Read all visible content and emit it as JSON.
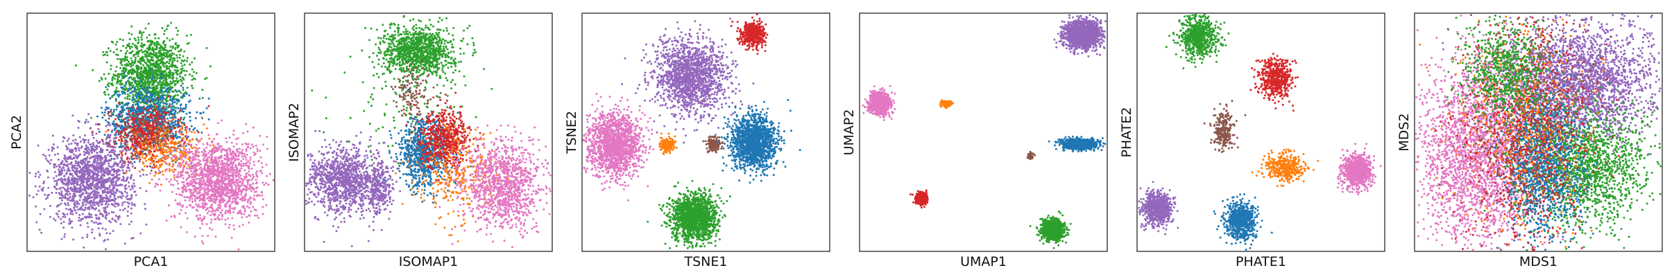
{
  "chart_data": [
    {
      "type": "scatter",
      "xlabel": "PCA1",
      "ylabel": "PCA2",
      "xticks": [],
      "yticks": [],
      "grid": false,
      "legend": "none",
      "clusters": [
        {
          "color": "#2ca02c",
          "center": [
            5.0,
            7.4
          ],
          "spread": [
            0.75,
            0.85
          ],
          "count": 1300
        },
        {
          "color": "#1f77b4",
          "center": [
            4.9,
            5.6
          ],
          "spread": [
            0.85,
            0.7
          ],
          "count": 900
        },
        {
          "color": "#d62728",
          "center": [
            4.8,
            4.9
          ],
          "spread": [
            0.7,
            0.55
          ],
          "count": 500
        },
        {
          "color": "#ff7f0e",
          "center": [
            5.6,
            4.2
          ],
          "spread": [
            0.8,
            0.5
          ],
          "count": 300
        },
        {
          "color": "#8c564b",
          "center": [
            4.9,
            5.1
          ],
          "spread": [
            0.6,
            0.5
          ],
          "count": 120
        },
        {
          "color": "#9467bd",
          "center": [
            2.6,
            3.0
          ],
          "spread": [
            0.85,
            0.9
          ],
          "count": 1500
        },
        {
          "color": "#e377c2",
          "center": [
            7.7,
            3.0
          ],
          "spread": [
            0.85,
            0.85
          ],
          "count": 1500
        }
      ]
    },
    {
      "type": "scatter",
      "xlabel": "ISOMAP1",
      "ylabel": "ISOMAP2",
      "xticks": [],
      "yticks": [],
      "grid": false,
      "legend": "none",
      "clusters": [
        {
          "color": "#2ca02c",
          "center": [
            4.6,
            8.4
          ],
          "spread": [
            0.7,
            0.5
          ],
          "count": 1100
        },
        {
          "color": "#2ca02c",
          "center": [
            4.3,
            6.2
          ],
          "spread": [
            1.5,
            1.5
          ],
          "count": 150
        },
        {
          "color": "#8c564b",
          "center": [
            4.4,
            6.6
          ],
          "spread": [
            0.4,
            0.6
          ],
          "count": 120
        },
        {
          "color": "#1f77b4",
          "center": [
            4.8,
            4.1
          ],
          "spread": [
            0.5,
            0.7
          ],
          "count": 800
        },
        {
          "color": "#d62728",
          "center": [
            5.7,
            4.7
          ],
          "spread": [
            0.5,
            0.6
          ],
          "count": 600
        },
        {
          "color": "#ff7f0e",
          "center": [
            6.2,
            3.2
          ],
          "spread": [
            0.9,
            0.9
          ],
          "count": 300
        },
        {
          "color": "#9467bd",
          "center": [
            1.6,
            3.0
          ],
          "spread": [
            0.75,
            0.7
          ],
          "count": 1100
        },
        {
          "color": "#9467bd",
          "center": [
            3.0,
            2.6
          ],
          "spread": [
            0.25,
            0.5
          ],
          "count": 250
        },
        {
          "color": "#e377c2",
          "center": [
            8.0,
            2.8
          ],
          "spread": [
            0.8,
            0.9
          ],
          "count": 1100
        }
      ]
    },
    {
      "type": "scatter",
      "xlabel": "TSNE1",
      "ylabel": "TSNE2",
      "xticks": [],
      "yticks": [],
      "grid": false,
      "legend": "none",
      "clusters": [
        {
          "color": "#d62728",
          "center": [
            6.9,
            9.1
          ],
          "spread": [
            0.24,
            0.26
          ],
          "count": 500
        },
        {
          "color": "#9467bd",
          "center": [
            4.4,
            7.3
          ],
          "spread": [
            0.75,
            0.8
          ],
          "count": 1500
        },
        {
          "color": "#e377c2",
          "center": [
            1.3,
            4.5
          ],
          "spread": [
            0.55,
            0.65
          ],
          "count": 1500
        },
        {
          "color": "#ff7f0e",
          "center": [
            3.45,
            4.5
          ],
          "spread": [
            0.15,
            0.16
          ],
          "count": 150
        },
        {
          "color": "#8c564b",
          "center": [
            5.35,
            4.5
          ],
          "spread": [
            0.15,
            0.14
          ],
          "count": 150
        },
        {
          "color": "#1f77b4",
          "center": [
            6.9,
            4.6
          ],
          "spread": [
            0.45,
            0.55
          ],
          "count": 1500
        },
        {
          "color": "#2ca02c",
          "center": [
            4.5,
            1.4
          ],
          "spread": [
            0.45,
            0.5
          ],
          "count": 1500
        }
      ]
    },
    {
      "type": "scatter",
      "xlabel": "UMAP1",
      "ylabel": "UMAP2",
      "xticks": [],
      "yticks": [],
      "grid": false,
      "legend": "none",
      "clusters": [
        {
          "color": "#9467bd",
          "center": [
            9.0,
            9.1
          ],
          "spread": [
            0.35,
            0.3
          ],
          "count": 1500
        },
        {
          "color": "#e377c2",
          "center": [
            0.8,
            6.2
          ],
          "spread": [
            0.22,
            0.22
          ],
          "count": 900
        },
        {
          "color": "#ff7f0e",
          "center": [
            3.5,
            6.2
          ],
          "spread": [
            0.1,
            0.06
          ],
          "count": 150
        },
        {
          "color": "#1f77b4",
          "center": [
            8.9,
            4.5
          ],
          "spread": [
            0.32,
            0.1
          ],
          "count": 1200
        },
        {
          "color": "#8c564b",
          "center": [
            6.9,
            4.0
          ],
          "spread": [
            0.06,
            0.06
          ],
          "count": 80
        },
        {
          "color": "#d62728",
          "center": [
            2.5,
            2.2
          ],
          "spread": [
            0.12,
            0.12
          ],
          "count": 400
        },
        {
          "color": "#2ca02c",
          "center": [
            7.8,
            0.9
          ],
          "spread": [
            0.22,
            0.22
          ],
          "count": 900
        }
      ]
    },
    {
      "type": "scatter",
      "xlabel": "PHATE1",
      "ylabel": "PHATE2",
      "xticks": [],
      "yticks": [],
      "grid": false,
      "legend": "none",
      "clusters": [
        {
          "color": "#2ca02c",
          "center": [
            2.5,
            9.0
          ],
          "spread": [
            0.35,
            0.45
          ],
          "count": 700
        },
        {
          "color": "#d62728",
          "center": [
            5.6,
            7.2
          ],
          "spread": [
            0.35,
            0.4
          ],
          "count": 500
        },
        {
          "color": "#8c564b",
          "center": [
            3.5,
            5.1
          ],
          "spread": [
            0.2,
            0.4
          ],
          "count": 250
        },
        {
          "color": "#ff7f0e",
          "center": [
            6.0,
            3.5
          ],
          "spread": [
            0.4,
            0.3
          ],
          "count": 400
        },
        {
          "color": "#e377c2",
          "center": [
            8.9,
            3.4
          ],
          "spread": [
            0.3,
            0.35
          ],
          "count": 800
        },
        {
          "color": "#9467bd",
          "center": [
            0.8,
            1.8
          ],
          "spread": [
            0.3,
            0.35
          ],
          "count": 700
        },
        {
          "color": "#1f77b4",
          "center": [
            4.2,
            1.3
          ],
          "spread": [
            0.3,
            0.4
          ],
          "count": 700
        }
      ]
    },
    {
      "type": "scatter",
      "xlabel": "MDS1",
      "ylabel": "MDS2",
      "xticks": [],
      "yticks": [],
      "grid": false,
      "legend": "none",
      "clusters": [
        {
          "color": "#9467bd",
          "center": [
            6.6,
            7.1
          ],
          "spread": [
            1.6,
            1.2
          ],
          "count": 2500
        },
        {
          "color": "#e377c2",
          "center": [
            2.6,
            4.2
          ],
          "spread": [
            1.2,
            1.9
          ],
          "count": 2500
        },
        {
          "color": "#2ca02c",
          "center": [
            6.9,
            3.5
          ],
          "spread": [
            1.3,
            1.2
          ],
          "count": 1600
        },
        {
          "color": "#1f77b4",
          "center": [
            5.2,
            3.6
          ],
          "spread": [
            0.8,
            1.6
          ],
          "count": 1200
        },
        {
          "color": "#d62728",
          "center": [
            4.6,
            5.0
          ],
          "spread": [
            1.3,
            2.4
          ],
          "count": 900
        },
        {
          "color": "#ff7f0e",
          "center": [
            4.3,
            5.2
          ],
          "spread": [
            1.4,
            2.5
          ],
          "count": 500
        },
        {
          "color": "#8c564b",
          "center": [
            4.6,
            5.5
          ],
          "spread": [
            1.2,
            2.3
          ],
          "count": 400
        },
        {
          "color": "#2ca02c",
          "center": [
            3.6,
            7.6
          ],
          "spread": [
            0.8,
            1.0
          ],
          "count": 700
        }
      ]
    }
  ]
}
